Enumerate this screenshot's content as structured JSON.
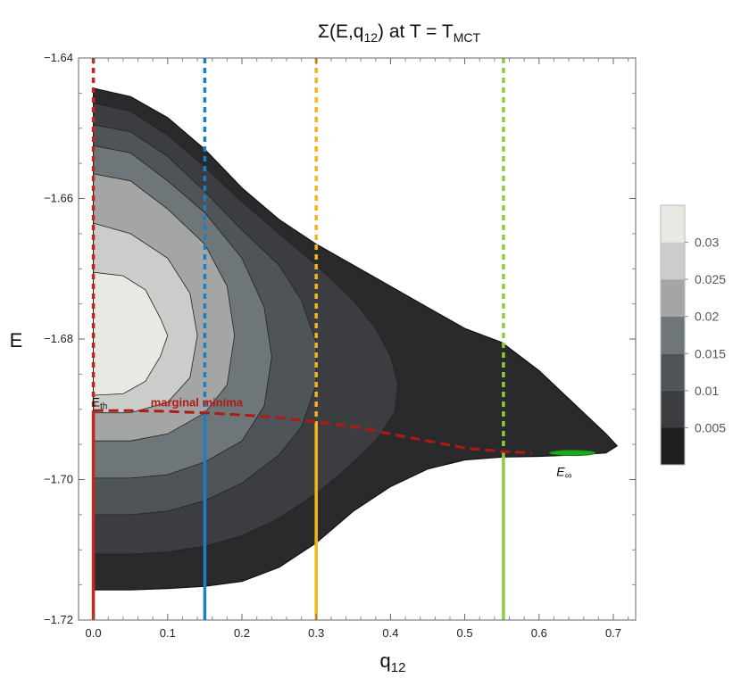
{
  "chart_data": {
    "type": "contour",
    "title": {
      "main": "Σ(E,q",
      "main_sub": "12",
      "middle": ")  at  T = T",
      "t_sub": "MCT"
    },
    "xlabel": {
      "base": "q",
      "sub": "12"
    },
    "ylabel": "E",
    "xlim": [
      -0.02,
      0.73
    ],
    "ylim": [
      -1.72,
      -1.64
    ],
    "x_ticks": [
      {
        "value": 0.0,
        "label": "0.0"
      },
      {
        "value": 0.1,
        "label": "0.1"
      },
      {
        "value": 0.2,
        "label": "0.2"
      },
      {
        "value": 0.3,
        "label": "0.3"
      },
      {
        "value": 0.4,
        "label": "0.4"
      },
      {
        "value": 0.5,
        "label": "0.5"
      },
      {
        "value": 0.6,
        "label": "0.6"
      },
      {
        "value": 0.7,
        "label": "0.7"
      }
    ],
    "y_ticks": [
      {
        "value": -1.64,
        "label": "−1.64"
      },
      {
        "value": -1.66,
        "label": "−1.66"
      },
      {
        "value": -1.68,
        "label": "−1.68"
      },
      {
        "value": -1.7,
        "label": "−1.70"
      },
      {
        "value": -1.72,
        "label": "−1.72"
      }
    ],
    "contour_levels": [
      {
        "level": 0.0,
        "color": "#2a2a2c",
        "boundary": [
          [
            0,
            -1.6443
          ],
          [
            0.05,
            -1.6455
          ],
          [
            0.1,
            -1.6485
          ],
          [
            0.15,
            -1.653
          ],
          [
            0.2,
            -1.6585
          ],
          [
            0.25,
            -1.663
          ],
          [
            0.3,
            -1.6665
          ],
          [
            0.35,
            -1.6695
          ],
          [
            0.4,
            -1.6725
          ],
          [
            0.45,
            -1.6755
          ],
          [
            0.5,
            -1.6785
          ],
          [
            0.55,
            -1.6805
          ],
          [
            0.6,
            -1.6845
          ],
          [
            0.65,
            -1.6895
          ],
          [
            0.69,
            -1.6935
          ],
          [
            0.705,
            -1.6952
          ],
          [
            0.69,
            -1.6962
          ],
          [
            0.65,
            -1.6965
          ],
          [
            0.6,
            -1.6967
          ],
          [
            0.55,
            -1.6968
          ],
          [
            0.5,
            -1.6972
          ],
          [
            0.45,
            -1.6985
          ],
          [
            0.4,
            -1.701
          ],
          [
            0.35,
            -1.7045
          ],
          [
            0.3,
            -1.709
          ],
          [
            0.25,
            -1.7125
          ],
          [
            0.2,
            -1.7145
          ],
          [
            0.15,
            -1.7152
          ],
          [
            0.1,
            -1.7155
          ],
          [
            0.05,
            -1.7157
          ],
          [
            0,
            -1.7157
          ]
        ]
      },
      {
        "level": 0.005,
        "color": "#3b3d41",
        "boundary": [
          [
            0,
            -1.6464
          ],
          [
            0.05,
            -1.6476
          ],
          [
            0.1,
            -1.651
          ],
          [
            0.15,
            -1.6555
          ],
          [
            0.2,
            -1.6605
          ],
          [
            0.25,
            -1.665
          ],
          [
            0.3,
            -1.6695
          ],
          [
            0.35,
            -1.6745
          ],
          [
            0.38,
            -1.6785
          ],
          [
            0.4,
            -1.6825
          ],
          [
            0.41,
            -1.6865
          ],
          [
            0.405,
            -1.6905
          ],
          [
            0.38,
            -1.6945
          ],
          [
            0.34,
            -1.6985
          ],
          [
            0.3,
            -1.702
          ],
          [
            0.25,
            -1.7055
          ],
          [
            0.2,
            -1.708
          ],
          [
            0.15,
            -1.7095
          ],
          [
            0.1,
            -1.7103
          ],
          [
            0.05,
            -1.7106
          ],
          [
            0,
            -1.7106
          ]
        ]
      },
      {
        "level": 0.01,
        "color": "#4e5458",
        "boundary": [
          [
            0,
            -1.6495
          ],
          [
            0.05,
            -1.6505
          ],
          [
            0.1,
            -1.654
          ],
          [
            0.15,
            -1.659
          ],
          [
            0.2,
            -1.6645
          ],
          [
            0.25,
            -1.6695
          ],
          [
            0.28,
            -1.6745
          ],
          [
            0.3,
            -1.6805
          ],
          [
            0.3,
            -1.6865
          ],
          [
            0.28,
            -1.6925
          ],
          [
            0.25,
            -1.6965
          ],
          [
            0.2,
            -1.7005
          ],
          [
            0.15,
            -1.703
          ],
          [
            0.1,
            -1.7045
          ],
          [
            0.05,
            -1.705
          ],
          [
            0,
            -1.705
          ]
        ]
      },
      {
        "level": 0.015,
        "color": "#6f7679",
        "boundary": [
          [
            0,
            -1.6525
          ],
          [
            0.05,
            -1.6535
          ],
          [
            0.1,
            -1.6575
          ],
          [
            0.15,
            -1.662
          ],
          [
            0.2,
            -1.6685
          ],
          [
            0.23,
            -1.6755
          ],
          [
            0.24,
            -1.6825
          ],
          [
            0.23,
            -1.6895
          ],
          [
            0.2,
            -1.6945
          ],
          [
            0.15,
            -1.6975
          ],
          [
            0.1,
            -1.6993
          ],
          [
            0.05,
            -1.6998
          ],
          [
            0,
            -1.6998
          ]
        ]
      },
      {
        "level": 0.02,
        "color": "#a4a6a6",
        "boundary": [
          [
            0,
            -1.6565
          ],
          [
            0.05,
            -1.6575
          ],
          [
            0.1,
            -1.6615
          ],
          [
            0.15,
            -1.6665
          ],
          [
            0.18,
            -1.6725
          ],
          [
            0.19,
            -1.6795
          ],
          [
            0.18,
            -1.6865
          ],
          [
            0.15,
            -1.6905
          ],
          [
            0.1,
            -1.6935
          ],
          [
            0.05,
            -1.6945
          ],
          [
            0,
            -1.6945
          ]
        ]
      },
      {
        "level": 0.025,
        "color": "#cbcdca",
        "boundary": [
          [
            0,
            -1.6635
          ],
          [
            0.05,
            -1.665
          ],
          [
            0.1,
            -1.6685
          ],
          [
            0.13,
            -1.6735
          ],
          [
            0.14,
            -1.6795
          ],
          [
            0.13,
            -1.6855
          ],
          [
            0.1,
            -1.689
          ],
          [
            0.05,
            -1.6905
          ],
          [
            0,
            -1.6905
          ]
        ]
      },
      {
        "level": 0.03,
        "color": "#e7e9e3",
        "boundary": [
          [
            0,
            -1.6705
          ],
          [
            0.04,
            -1.671
          ],
          [
            0.07,
            -1.673
          ],
          [
            0.09,
            -1.677
          ],
          [
            0.1,
            -1.6795
          ],
          [
            0.09,
            -1.6825
          ],
          [
            0.07,
            -1.686
          ],
          [
            0.04,
            -1.6878
          ],
          [
            0,
            -1.688
          ]
        ]
      }
    ],
    "vertical_lines": [
      {
        "x": 0.0,
        "color": "#c2261c",
        "split_E": -1.6902
      },
      {
        "x": 0.15,
        "color": "#1b7fc1",
        "split_E": -1.6902
      },
      {
        "x": 0.3,
        "color": "#f2b51b",
        "split_E": -1.6918
      },
      {
        "x": 0.552,
        "color": "#8dcb3c",
        "split_E": -1.6965
      }
    ],
    "marginal_minima_curve": {
      "label": "marginal minima",
      "color": "#b01a14",
      "points": [
        [
          0,
          -1.6902
        ],
        [
          0.05,
          -1.6902
        ],
        [
          0.1,
          -1.6903
        ],
        [
          0.15,
          -1.6905
        ],
        [
          0.2,
          -1.6908
        ],
        [
          0.25,
          -1.6912
        ],
        [
          0.3,
          -1.6918
        ],
        [
          0.35,
          -1.6925
        ],
        [
          0.4,
          -1.6935
        ],
        [
          0.45,
          -1.6945
        ],
        [
          0.5,
          -1.6955
        ],
        [
          0.55,
          -1.696
        ],
        [
          0.59,
          -1.6962
        ]
      ]
    },
    "threshold_marker": {
      "label_base": "E",
      "label_sub": "th",
      "q": 0.0,
      "E": -1.6902
    },
    "infinity_marker": {
      "label_base": "E",
      "label_sub": "∞",
      "q": 0.645,
      "E": -1.6962,
      "color": "#1ea81e"
    },
    "colorbar": {
      "range": [
        0,
        0.035
      ],
      "bands": [
        {
          "from": 0.0,
          "to": 0.005,
          "color": "#1f1f20"
        },
        {
          "from": 0.005,
          "to": 0.01,
          "color": "#3b3d41"
        },
        {
          "from": 0.01,
          "to": 0.015,
          "color": "#4e5458"
        },
        {
          "from": 0.015,
          "to": 0.02,
          "color": "#6f7679"
        },
        {
          "from": 0.02,
          "to": 0.025,
          "color": "#a4a6a6"
        },
        {
          "from": 0.025,
          "to": 0.03,
          "color": "#cbcdca"
        },
        {
          "from": 0.03,
          "to": 0.035,
          "color": "#e7e9e3"
        }
      ],
      "ticks": [
        {
          "value": 0.005,
          "label": "0.005"
        },
        {
          "value": 0.01,
          "label": "0.01"
        },
        {
          "value": 0.015,
          "label": "0.015"
        },
        {
          "value": 0.02,
          "label": "0.02"
        },
        {
          "value": 0.025,
          "label": "0.025"
        },
        {
          "value": 0.03,
          "label": "0.03"
        }
      ]
    }
  }
}
